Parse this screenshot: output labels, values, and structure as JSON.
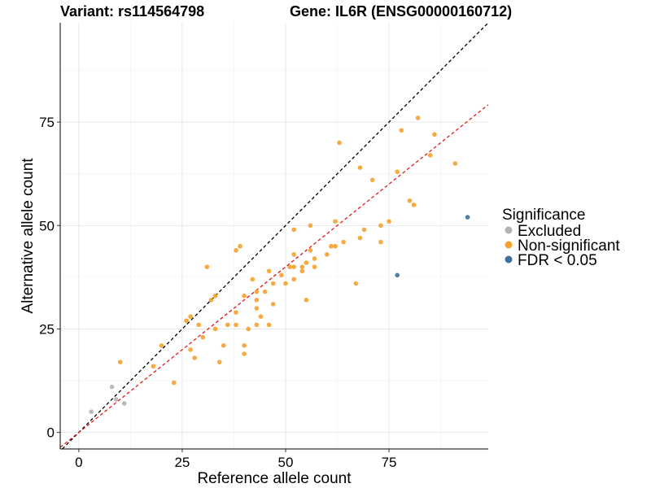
{
  "title": {
    "variant": "Variant: rs114564798",
    "gene": "Gene: IL6R (ENSG00000160712)"
  },
  "legend": {
    "title": "Significance",
    "items": [
      {
        "key": "Excluded",
        "label": "Excluded",
        "color": "#b3b3b3"
      },
      {
        "key": "Non-significant",
        "label": "Non-significant",
        "color": "#f5a12b"
      },
      {
        "key": "FDR < 0.05",
        "label": "FDR < 0.05",
        "color": "#3f6f9c"
      }
    ]
  },
  "chart_data": {
    "type": "scatter",
    "xlabel": "Reference allele count",
    "ylabel": "Alternative allele count",
    "xlim": [
      -4.5,
      99
    ],
    "ylim": [
      -4,
      99
    ],
    "xticks": [
      0,
      25,
      50,
      75
    ],
    "yticks": [
      0,
      25,
      50,
      75
    ],
    "grid": true,
    "legend_position": "right",
    "reference_lines": [
      {
        "name": "identity",
        "slope": 1.0,
        "intercept": 0,
        "color": "#000000",
        "style": "dashed"
      },
      {
        "name": "fit",
        "slope": 0.8,
        "intercept": 0,
        "color": "#e41a1c",
        "style": "dashed"
      }
    ],
    "series": [
      {
        "name": "Excluded",
        "color": "#b3b3b3",
        "points": [
          [
            3,
            5
          ],
          [
            8,
            11
          ],
          [
            9,
            8
          ],
          [
            11,
            7
          ]
        ]
      },
      {
        "name": "Non-significant",
        "color": "#f5a12b",
        "points": [
          [
            10,
            17
          ],
          [
            18,
            16
          ],
          [
            20,
            21
          ],
          [
            23,
            12
          ],
          [
            26,
            27
          ],
          [
            27,
            28
          ],
          [
            27,
            20
          ],
          [
            28,
            18
          ],
          [
            29,
            26
          ],
          [
            30,
            23
          ],
          [
            31,
            40
          ],
          [
            32,
            32
          ],
          [
            33,
            33
          ],
          [
            33,
            25
          ],
          [
            34,
            17
          ],
          [
            35,
            21
          ],
          [
            36,
            26
          ],
          [
            38,
            26
          ],
          [
            38,
            44
          ],
          [
            38,
            29
          ],
          [
            39,
            45
          ],
          [
            40,
            33
          ],
          [
            40,
            21
          ],
          [
            40,
            19
          ],
          [
            41,
            25
          ],
          [
            42,
            37
          ],
          [
            43,
            32
          ],
          [
            43,
            34
          ],
          [
            43,
            30
          ],
          [
            43,
            26
          ],
          [
            44,
            28
          ],
          [
            45,
            34
          ],
          [
            46,
            26
          ],
          [
            46,
            39
          ],
          [
            47,
            31
          ],
          [
            47,
            36
          ],
          [
            49,
            38
          ],
          [
            50,
            36
          ],
          [
            51,
            40
          ],
          [
            52,
            40
          ],
          [
            52,
            37
          ],
          [
            52,
            43
          ],
          [
            52,
            49
          ],
          [
            54,
            40
          ],
          [
            54,
            39
          ],
          [
            55,
            32
          ],
          [
            55,
            41
          ],
          [
            56,
            44
          ],
          [
            56,
            50
          ],
          [
            57,
            42
          ],
          [
            57,
            40
          ],
          [
            60,
            43
          ],
          [
            61,
            45
          ],
          [
            62,
            51
          ],
          [
            62,
            45
          ],
          [
            63,
            70
          ],
          [
            64,
            46
          ],
          [
            67,
            36
          ],
          [
            68,
            64
          ],
          [
            68,
            47
          ],
          [
            69,
            49
          ],
          [
            71,
            61
          ],
          [
            73,
            50
          ],
          [
            73,
            46
          ],
          [
            75,
            51
          ],
          [
            77,
            63
          ],
          [
            78,
            73
          ],
          [
            80,
            56
          ],
          [
            81,
            55
          ],
          [
            82,
            76
          ],
          [
            85,
            67
          ],
          [
            86,
            72
          ],
          [
            91,
            65
          ]
        ]
      },
      {
        "name": "FDR < 0.05",
        "color": "#3f6f9c",
        "points": [
          [
            77,
            38
          ],
          [
            94,
            52
          ]
        ]
      }
    ]
  }
}
